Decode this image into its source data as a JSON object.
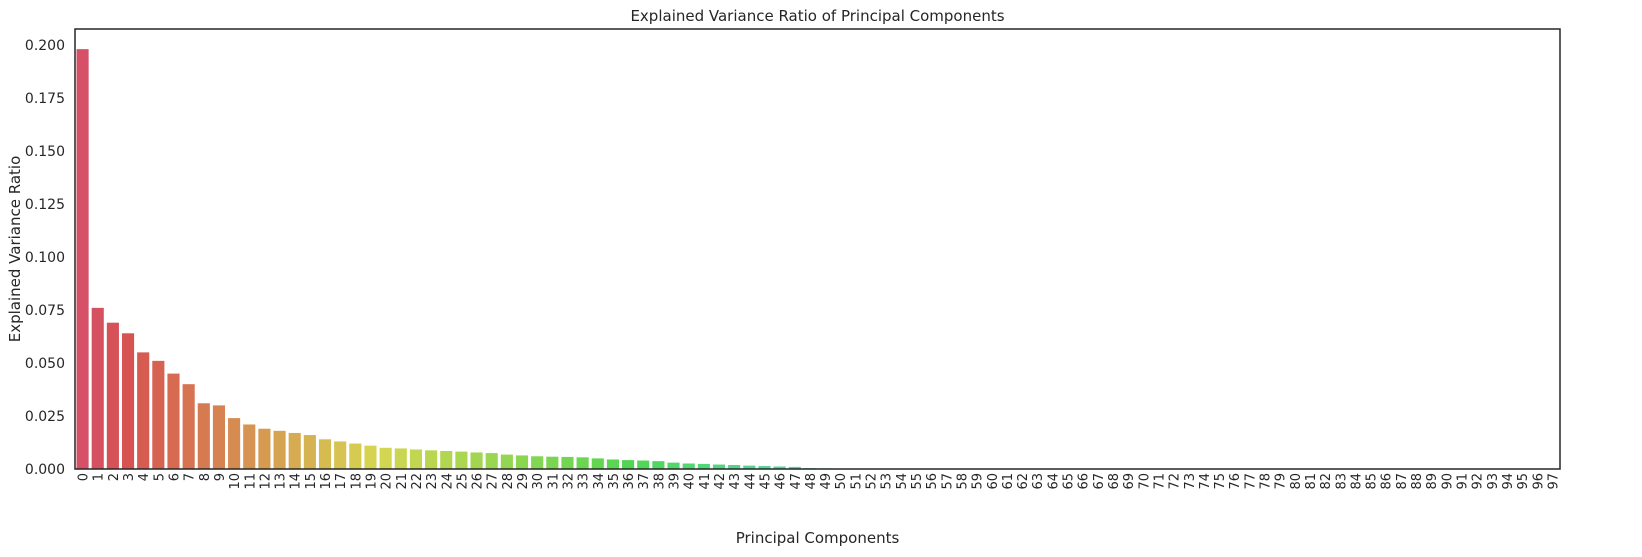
{
  "chart_data": {
    "type": "bar",
    "title": "Explained Variance Ratio of Principal Components",
    "xlabel": "Principal Components",
    "ylabel": "Explained Variance Ratio",
    "ylim": [
      0,
      0.2075
    ],
    "yticks": [
      0.0,
      0.025,
      0.05,
      0.075,
      0.1,
      0.125,
      0.15,
      0.175,
      0.2
    ],
    "ytick_labels": [
      "0.000",
      "0.025",
      "0.050",
      "0.075",
      "0.100",
      "0.125",
      "0.150",
      "0.175",
      "0.200"
    ],
    "grid": false,
    "legend": "none",
    "categories": [
      "0",
      "1",
      "2",
      "3",
      "4",
      "5",
      "6",
      "7",
      "8",
      "9",
      "10",
      "11",
      "12",
      "13",
      "14",
      "15",
      "16",
      "17",
      "18",
      "19",
      "20",
      "21",
      "22",
      "23",
      "24",
      "25",
      "26",
      "27",
      "28",
      "29",
      "30",
      "31",
      "32",
      "33",
      "34",
      "35",
      "36",
      "37",
      "38",
      "39",
      "40",
      "41",
      "42",
      "43",
      "44",
      "45",
      "46",
      "47",
      "48",
      "49",
      "50",
      "51",
      "52",
      "53",
      "54",
      "55",
      "56",
      "57",
      "58",
      "59",
      "60",
      "61",
      "62",
      "63",
      "64",
      "65",
      "66",
      "67",
      "68",
      "69",
      "70",
      "71",
      "72",
      "73",
      "74",
      "75",
      "76",
      "77",
      "78",
      "79",
      "80",
      "81",
      "82",
      "83",
      "84",
      "85",
      "86",
      "87",
      "88",
      "89",
      "90",
      "91",
      "92",
      "93",
      "94",
      "95",
      "96",
      "97"
    ],
    "values": [
      0.198,
      0.076,
      0.069,
      0.064,
      0.055,
      0.051,
      0.045,
      0.04,
      0.031,
      0.03,
      0.024,
      0.021,
      0.019,
      0.018,
      0.017,
      0.016,
      0.014,
      0.013,
      0.012,
      0.011,
      0.01,
      0.0097,
      0.0092,
      0.0088,
      0.0085,
      0.0082,
      0.0078,
      0.0075,
      0.0068,
      0.0064,
      0.006,
      0.0058,
      0.0057,
      0.0055,
      0.005,
      0.0045,
      0.0042,
      0.004,
      0.0037,
      0.003,
      0.0026,
      0.0024,
      0.0021,
      0.0019,
      0.0016,
      0.0014,
      0.0012,
      0.001,
      0.0004,
      0.0003,
      0.0002,
      0.0002,
      0.0002,
      0.0001,
      0.0001,
      0.0001,
      0.0001,
      0.0001,
      0.0001,
      0.0001,
      0.0001,
      0.0001,
      0.0001,
      0.0001,
      0.0001,
      0.0001,
      0.0001,
      0.0001,
      0.0001,
      0.0001,
      0.0001,
      0.0001,
      0.0001,
      0.0001,
      0.0001,
      0.0001,
      0.0001,
      0.0001,
      0.0001,
      0.0001,
      0.0001,
      0.0001,
      0.0001,
      0.0001,
      0.0001,
      0.0001,
      0.0001,
      0.0001,
      0.0001,
      0.0001,
      0.0001,
      0.0001,
      0.0001,
      0.0001,
      0.0001,
      0.0001,
      0.0001,
      0.0001
    ],
    "palette": "husl"
  }
}
